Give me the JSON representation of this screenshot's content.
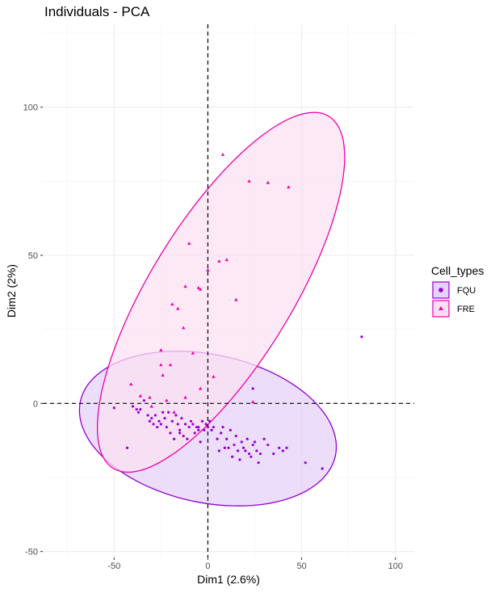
{
  "chart_data": {
    "type": "scatter",
    "title": "Individuals - PCA",
    "xlabel": "Dim1 (2.6%)",
    "ylabel": "Dim2 (2%)",
    "xlim": [
      -88,
      110
    ],
    "ylim": [
      -52,
      128
    ],
    "x_ticks": [
      -50,
      0,
      50,
      100
    ],
    "y_ticks": [
      -50,
      0,
      50,
      100
    ],
    "grid": true,
    "legend_title": "Cell_types",
    "legend_position": "right",
    "reference_lines": {
      "x": 0,
      "y": 0,
      "style": "dashed"
    },
    "series": [
      {
        "name": "FQU",
        "marker": "circle",
        "color": "#9400D3",
        "fill": "#E6D2FA",
        "ellipse": {
          "cx": 0,
          "cy": -8.5,
          "rx": 69.5,
          "ry": 25,
          "angle_deg": -12
        },
        "points": [
          [
            -50,
            -1.5
          ],
          [
            -43,
            -15
          ],
          [
            -40,
            -1
          ],
          [
            -38,
            -2
          ],
          [
            -37,
            -3
          ],
          [
            -36,
            -2
          ],
          [
            -34,
            1
          ],
          [
            -32,
            -4
          ],
          [
            -31,
            -6
          ],
          [
            -30,
            -5
          ],
          [
            -29,
            -7
          ],
          [
            -28,
            -4
          ],
          [
            -27,
            -8
          ],
          [
            -26,
            -6
          ],
          [
            -25,
            -7
          ],
          [
            -24,
            -3
          ],
          [
            -23,
            -5
          ],
          [
            -22,
            -8
          ],
          [
            -21,
            -3
          ],
          [
            -20,
            -10
          ],
          [
            -19,
            -6
          ],
          [
            -18,
            -12
          ],
          [
            -17,
            -4
          ],
          [
            -16,
            -7
          ],
          [
            -15,
            -9
          ],
          [
            -14,
            -5
          ],
          [
            -13,
            -11
          ],
          [
            -12,
            -7
          ],
          [
            -11,
            -12
          ],
          [
            -10,
            -8
          ],
          [
            -9,
            -6
          ],
          [
            -8,
            -7
          ],
          [
            -7,
            -10
          ],
          [
            -6,
            -8
          ],
          [
            -5,
            -9
          ],
          [
            -4,
            -13
          ],
          [
            -3,
            -6
          ],
          [
            -2,
            -9
          ],
          [
            -1,
            -7
          ],
          [
            0,
            -8
          ],
          [
            1,
            -6
          ],
          [
            2,
            -9
          ],
          [
            3,
            -8
          ],
          [
            5,
            -12
          ],
          [
            6,
            -16
          ],
          [
            7,
            -10
          ],
          [
            8,
            -8
          ],
          [
            9,
            -15
          ],
          [
            10,
            -12
          ],
          [
            11,
            -15
          ],
          [
            12,
            -9
          ],
          [
            13,
            -18
          ],
          [
            14,
            -14
          ],
          [
            15,
            -11
          ],
          [
            16,
            -16
          ],
          [
            17,
            -19
          ],
          [
            18,
            -13
          ],
          [
            19,
            -15
          ],
          [
            20,
            -16
          ],
          [
            21,
            -12
          ],
          [
            22,
            -17
          ],
          [
            23,
            -18
          ],
          [
            24,
            -14
          ],
          [
            25,
            -13
          ],
          [
            26,
            -16
          ],
          [
            27,
            -20
          ],
          [
            28,
            -17
          ],
          [
            30,
            -12
          ],
          [
            32,
            -14
          ],
          [
            35,
            -17
          ],
          [
            38,
            -15
          ],
          [
            40,
            -16
          ],
          [
            42,
            -15
          ],
          [
            52,
            -20
          ],
          [
            61,
            -22
          ],
          [
            82,
            22.5
          ],
          [
            24,
            5
          ],
          [
            1,
            -6
          ],
          [
            -5,
            -8
          ],
          [
            -15,
            -10
          ]
        ]
      },
      {
        "name": "FRE",
        "marker": "triangle",
        "color": "#EE00A8",
        "fill": "#FCE0F1",
        "ellipse": {
          "cx": 7,
          "cy": 37.5,
          "rx": 110,
          "ry": 24,
          "angle_deg": 58.5
        },
        "points": [
          [
            8,
            84
          ],
          [
            22,
            75
          ],
          [
            32,
            74.5
          ],
          [
            43,
            73
          ],
          [
            -10,
            54
          ],
          [
            6,
            48
          ],
          [
            10,
            48.5
          ],
          [
            0,
            45
          ],
          [
            -12,
            39.5
          ],
          [
            -5,
            39
          ],
          [
            -4,
            38.5
          ],
          [
            15,
            35
          ],
          [
            -19,
            33.5
          ],
          [
            -16,
            32
          ],
          [
            -13,
            25.5
          ],
          [
            -25,
            18
          ],
          [
            -8,
            17
          ],
          [
            -25,
            13
          ],
          [
            -20,
            13
          ],
          [
            -24,
            9.5
          ],
          [
            -41,
            6.5
          ],
          [
            -36,
            2.5
          ],
          [
            -31,
            2
          ],
          [
            -22,
            1
          ],
          [
            24,
            0.5
          ],
          [
            -12,
            2
          ],
          [
            -4,
            5
          ],
          [
            3,
            9
          ],
          [
            -30,
            -1
          ],
          [
            -18,
            -3
          ]
        ]
      }
    ]
  }
}
